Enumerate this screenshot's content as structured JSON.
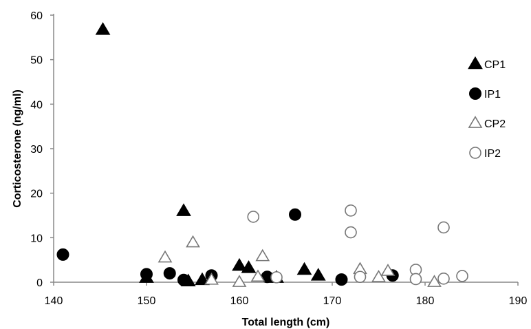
{
  "chart_data": {
    "type": "scatter",
    "title": "",
    "xlabel": "Total length (cm)",
    "ylabel": "Corticosterone (ng/ml)",
    "xlim": [
      140,
      190
    ],
    "ylim": [
      0,
      60
    ],
    "xticks": [
      140,
      150,
      160,
      170,
      180,
      190
    ],
    "yticks": [
      0,
      10,
      20,
      30,
      40,
      50,
      60
    ],
    "grid": false,
    "legend_position": "right",
    "series": [
      {
        "name": "CP1",
        "marker": "triangle-filled",
        "points": [
          [
            145.3,
            56.7
          ],
          [
            154.0,
            16.0
          ],
          [
            150.0,
            1.0
          ],
          [
            154.5,
            0.2
          ],
          [
            156.0,
            0.5
          ],
          [
            160.0,
            3.7
          ],
          [
            161.0,
            3.2
          ],
          [
            164.0,
            1.0
          ],
          [
            167.0,
            2.8
          ],
          [
            168.5,
            1.5
          ]
        ]
      },
      {
        "name": "IP1",
        "marker": "circle-filled",
        "points": [
          [
            141.0,
            6.2
          ],
          [
            150.0,
            1.8
          ],
          [
            152.5,
            2.0
          ],
          [
            154.0,
            0.5
          ],
          [
            157.0,
            1.5
          ],
          [
            163.0,
            1.2
          ],
          [
            166.0,
            15.2
          ],
          [
            171.0,
            0.6
          ],
          [
            176.5,
            1.5
          ]
        ]
      },
      {
        "name": "CP2",
        "marker": "triangle-open",
        "points": [
          [
            152.0,
            5.5
          ],
          [
            155.0,
            8.9
          ],
          [
            157.0,
            0.5
          ],
          [
            160.0,
            0.0
          ],
          [
            162.0,
            1.2
          ],
          [
            162.5,
            5.8
          ],
          [
            173.0,
            2.9
          ],
          [
            175.0,
            1.1
          ],
          [
            176.0,
            2.5
          ],
          [
            181.0,
            0.0
          ]
        ]
      },
      {
        "name": "IP2",
        "marker": "circle-open",
        "points": [
          [
            161.5,
            14.7
          ],
          [
            164.0,
            1.1
          ],
          [
            172.0,
            16.1
          ],
          [
            172.0,
            11.2
          ],
          [
            173.0,
            1.2
          ],
          [
            179.0,
            2.8
          ],
          [
            179.0,
            0.7
          ],
          [
            182.0,
            12.3
          ],
          [
            182.0,
            0.8
          ],
          [
            184.0,
            1.4
          ]
        ]
      }
    ]
  }
}
